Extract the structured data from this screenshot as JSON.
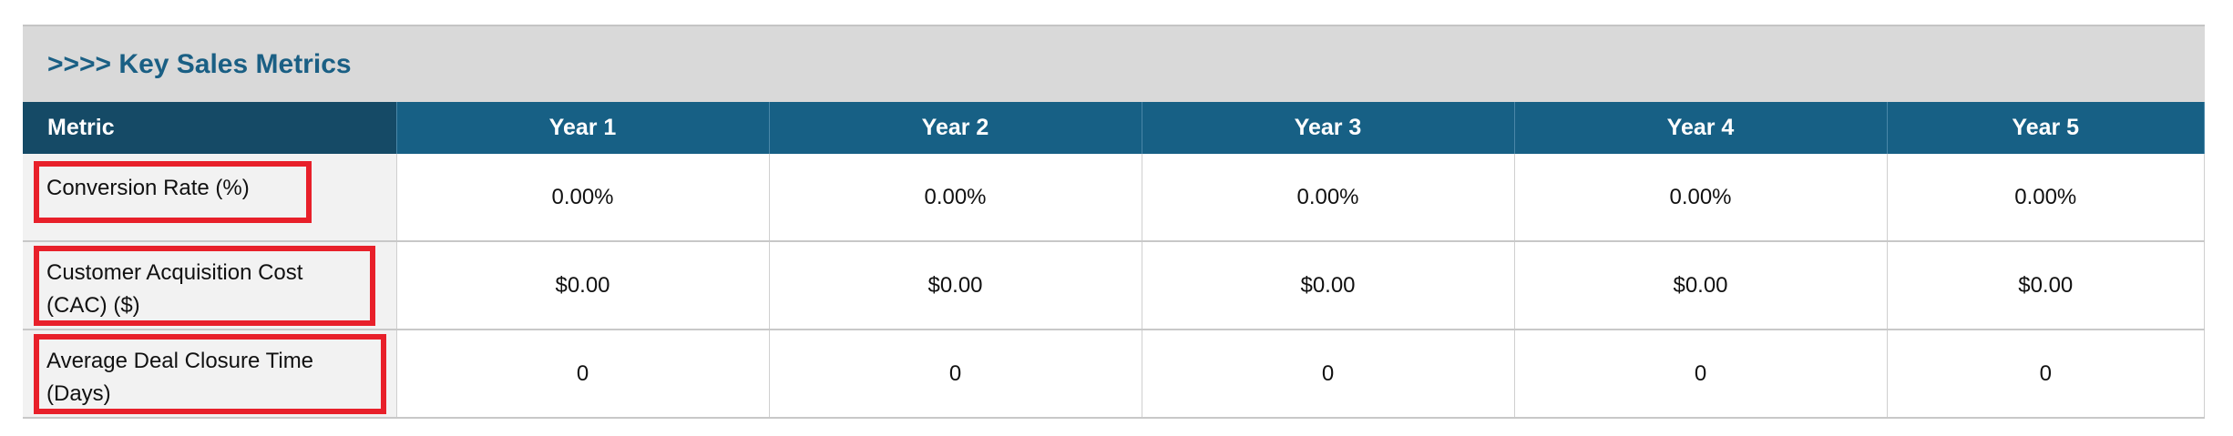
{
  "title": ">>>> Key Sales Metrics",
  "columns": [
    "Metric",
    "Year 1",
    "Year 2",
    "Year 3",
    "Year 4",
    "Year 5"
  ],
  "rows": [
    {
      "metric": "Conversion Rate (%)",
      "values": [
        "0.00%",
        "0.00%",
        "0.00%",
        "0.00%",
        "0.00%"
      ]
    },
    {
      "metric": "Customer Acquisition Cost (CAC) ($)",
      "values": [
        "$0.00",
        "$0.00",
        "$0.00",
        "$0.00",
        "$0.00"
      ]
    },
    {
      "metric": "Average Deal Closure Time (Days)",
      "values": [
        "0",
        "0",
        "0",
        "0",
        "0"
      ]
    }
  ],
  "colors": {
    "header": "#176085",
    "metric_header": "#154a66",
    "title": "#1a5f84",
    "highlight": "#e8202a"
  }
}
